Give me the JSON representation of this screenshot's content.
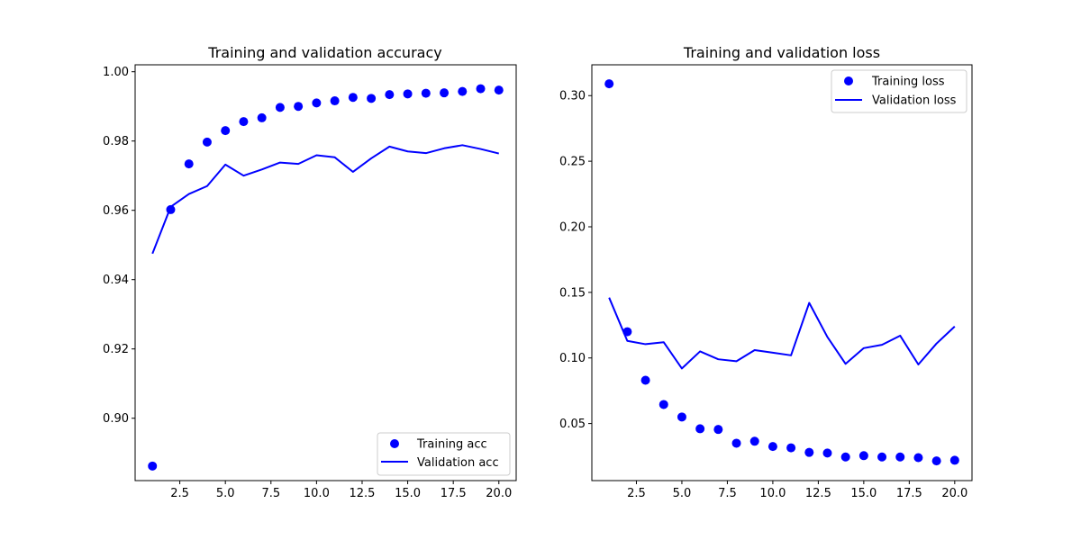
{
  "chart_data": [
    {
      "type": "scatter+line",
      "title": "Training and validation accuracy",
      "xlabel": "",
      "ylabel": "",
      "x": [
        1,
        2,
        3,
        4,
        5,
        6,
        7,
        8,
        9,
        10,
        11,
        12,
        13,
        14,
        15,
        16,
        17,
        18,
        19,
        20
      ],
      "xticks": [
        "2.5",
        "5.0",
        "7.5",
        "10.0",
        "12.5",
        "15.0",
        "17.5",
        "20.0"
      ],
      "yticks": [
        "0.90",
        "0.92",
        "0.94",
        "0.96",
        "0.98",
        "1.00"
      ],
      "xlim": [
        0.05,
        20.95
      ],
      "ylim": [
        0.882,
        1.002
      ],
      "legend_position": "lower right",
      "grid": false,
      "series": [
        {
          "name": "Training acc",
          "style": "points",
          "color": "#0000ff",
          "values": [
            0.8862,
            0.9602,
            0.9734,
            0.9797,
            0.983,
            0.9856,
            0.9867,
            0.9897,
            0.99,
            0.991,
            0.9916,
            0.9926,
            0.9923,
            0.9934,
            0.9936,
            0.9938,
            0.9939,
            0.9943,
            0.9951,
            0.9947
          ]
        },
        {
          "name": "Validation acc",
          "style": "line",
          "color": "#0000ff",
          "values": [
            0.9475,
            0.961,
            0.9647,
            0.967,
            0.9732,
            0.97,
            0.9718,
            0.9738,
            0.9734,
            0.9759,
            0.9753,
            0.9711,
            0.975,
            0.9784,
            0.977,
            0.9765,
            0.9779,
            0.9788,
            0.9777,
            0.9764
          ]
        }
      ]
    },
    {
      "type": "scatter+line",
      "title": "Training and validation loss",
      "xlabel": "",
      "ylabel": "",
      "x": [
        1,
        2,
        3,
        4,
        5,
        6,
        7,
        8,
        9,
        10,
        11,
        12,
        13,
        14,
        15,
        16,
        17,
        18,
        19,
        20
      ],
      "xticks": [
        "2.5",
        "5.0",
        "7.5",
        "10.0",
        "12.5",
        "15.0",
        "17.5",
        "20.0"
      ],
      "yticks": [
        "0.05",
        "0.10",
        "0.15",
        "0.20",
        "0.25",
        "0.30"
      ],
      "xlim": [
        0.05,
        20.95
      ],
      "ylim": [
        0.0065,
        0.3235
      ],
      "legend_position": "upper right",
      "grid": false,
      "series": [
        {
          "name": "Training loss",
          "style": "points",
          "color": "#0000ff",
          "values": [
            0.309,
            0.12,
            0.083,
            0.0645,
            0.055,
            0.046,
            0.0455,
            0.035,
            0.0365,
            0.0325,
            0.0315,
            0.028,
            0.0275,
            0.0245,
            0.0255,
            0.0245,
            0.0245,
            0.024,
            0.0215,
            0.022
          ]
        },
        {
          "name": "Validation loss",
          "style": "line",
          "color": "#0000ff",
          "values": [
            0.146,
            0.113,
            0.1105,
            0.112,
            0.092,
            0.105,
            0.099,
            0.0975,
            0.106,
            0.104,
            0.102,
            0.142,
            0.116,
            0.0955,
            0.1075,
            0.11,
            0.117,
            0.095,
            0.111,
            0.124
          ]
        }
      ]
    }
  ]
}
